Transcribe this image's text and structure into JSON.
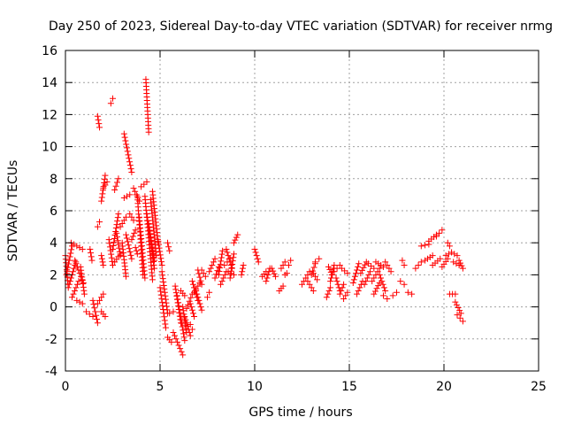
{
  "chart_data": {
    "type": "scatter",
    "title": "Day 250 of 2023, Sidereal Day-to-day VTEC variation (SDTVAR) for receiver nrmg",
    "xlabel": "GPS time / hours",
    "ylabel": "SDTVAR / TECUs",
    "xlim": [
      0,
      25
    ],
    "ylim": [
      -4,
      16
    ],
    "xticks": [
      0,
      5,
      10,
      15,
      20,
      25
    ],
    "yticks": [
      -4,
      -2,
      0,
      2,
      4,
      6,
      8,
      10,
      12,
      14,
      16
    ],
    "grid": true,
    "marker": "+",
    "color": "#ff0000",
    "segments": [
      [
        0.0,
        3.2,
        0.15,
        1.2
      ],
      [
        0.05,
        2.0,
        0.35,
        3.8
      ],
      [
        0.2,
        1.4,
        0.55,
        2.8
      ],
      [
        0.3,
        4.0,
        0.9,
        3.6
      ],
      [
        0.35,
        0.6,
        0.7,
        1.6
      ],
      [
        0.5,
        2.9,
        0.95,
        1.5
      ],
      [
        0.6,
        0.4,
        0.9,
        0.2
      ],
      [
        0.8,
        2.5,
        1.0,
        0.8
      ],
      [
        1.1,
        -0.3,
        1.45,
        -0.6
      ],
      [
        1.3,
        3.6,
        1.4,
        2.9
      ],
      [
        1.45,
        0.4,
        1.7,
        -1.0
      ],
      [
        1.7,
        0.2,
        2.0,
        0.8
      ],
      [
        1.7,
        11.9,
        1.8,
        11.2
      ],
      [
        1.7,
        5.0,
        1.8,
        5.3
      ],
      [
        1.9,
        6.6,
        2.1,
        8.2
      ],
      [
        1.9,
        -0.3,
        2.1,
        -0.6
      ],
      [
        1.9,
        3.2,
        2.0,
        2.6
      ],
      [
        2.0,
        7.4,
        2.2,
        7.8
      ],
      [
        2.3,
        4.2,
        2.5,
        2.6
      ],
      [
        2.4,
        12.7,
        2.5,
        13.0
      ],
      [
        2.5,
        3.6,
        2.8,
        5.8
      ],
      [
        2.6,
        2.8,
        2.9,
        3.3
      ],
      [
        2.6,
        7.3,
        2.8,
        8.0
      ],
      [
        2.7,
        4.6,
        2.9,
        3.2
      ],
      [
        2.9,
        5.0,
        3.2,
        5.6
      ],
      [
        3.0,
        4.0,
        3.2,
        1.9
      ],
      [
        3.1,
        10.8,
        3.5,
        8.4
      ],
      [
        3.1,
        6.8,
        3.4,
        7.0
      ],
      [
        3.2,
        4.5,
        3.5,
        3.0
      ],
      [
        3.4,
        5.8,
        3.6,
        5.4
      ],
      [
        3.5,
        4.2,
        3.7,
        4.8
      ],
      [
        3.6,
        7.4,
        3.9,
        6.6
      ],
      [
        3.7,
        3.7,
        3.8,
        3.3
      ],
      [
        3.8,
        6.9,
        4.1,
        2.0
      ],
      [
        3.9,
        5.6,
        4.2,
        1.8
      ],
      [
        4.0,
        7.5,
        4.3,
        7.8
      ],
      [
        4.2,
        6.9,
        4.6,
        1.7
      ],
      [
        4.25,
        14.2,
        4.4,
        10.9
      ],
      [
        4.3,
        5.8,
        4.7,
        2.4
      ],
      [
        4.4,
        5.2,
        4.7,
        2.9
      ],
      [
        4.5,
        6.7,
        4.8,
        3.2
      ],
      [
        4.6,
        7.2,
        4.9,
        4.0
      ],
      [
        4.9,
        4.1,
        5.1,
        2.6
      ],
      [
        5.0,
        1.2,
        5.3,
        -1.3
      ],
      [
        5.1,
        2.2,
        5.4,
        -0.4
      ],
      [
        5.4,
        4.0,
        5.5,
        3.5
      ],
      [
        5.4,
        -1.9,
        5.6,
        -2.2
      ],
      [
        5.5,
        -0.4,
        5.7,
        -0.3
      ],
      [
        5.7,
        -1.6,
        6.2,
        -3.0
      ],
      [
        5.8,
        1.3,
        6.1,
        -1.0
      ],
      [
        5.9,
        0.7,
        6.3,
        -2.1
      ],
      [
        6.1,
        1.0,
        6.3,
        0.7
      ],
      [
        6.2,
        0.0,
        6.4,
        -1.6
      ],
      [
        6.3,
        -0.6,
        6.6,
        -1.8
      ],
      [
        6.4,
        -0.1,
        6.7,
        0.8
      ],
      [
        6.6,
        0.2,
        6.8,
        -0.6
      ],
      [
        6.6,
        -1.1,
        6.7,
        -1.4
      ],
      [
        6.7,
        1.6,
        7.0,
        0.4
      ],
      [
        6.8,
        0.9,
        7.1,
        1.5
      ],
      [
        6.9,
        1.0,
        7.2,
        -0.2
      ],
      [
        7.0,
        2.3,
        7.2,
        1.4
      ],
      [
        7.2,
        2.3,
        7.4,
        1.9
      ],
      [
        7.5,
        0.6,
        7.6,
        0.9
      ],
      [
        7.6,
        2.2,
        7.9,
        3.0
      ],
      [
        7.9,
        1.8,
        8.1,
        2.5
      ],
      [
        8.1,
        2.0,
        8.3,
        3.5
      ],
      [
        8.2,
        1.4,
        8.5,
        2.2
      ],
      [
        8.4,
        2.6,
        8.7,
        3.0
      ],
      [
        8.5,
        3.6,
        8.8,
        2.4
      ],
      [
        8.7,
        1.8,
        8.9,
        3.3
      ],
      [
        8.9,
        4.0,
        9.1,
        4.5
      ],
      [
        8.6,
        2.2,
        8.9,
        2.0
      ],
      [
        9.3,
        2.0,
        9.4,
        2.6
      ],
      [
        10.0,
        3.6,
        10.2,
        2.8
      ],
      [
        10.4,
        1.9,
        10.6,
        2.2
      ],
      [
        10.6,
        1.6,
        10.8,
        2.4
      ],
      [
        10.9,
        2.4,
        11.1,
        1.9
      ],
      [
        11.3,
        1.0,
        11.5,
        1.3
      ],
      [
        11.4,
        2.4,
        11.6,
        2.8
      ],
      [
        11.6,
        2.0,
        11.7,
        2.1
      ],
      [
        11.8,
        2.6,
        11.9,
        2.9
      ],
      [
        12.5,
        1.4,
        12.9,
        2.2
      ],
      [
        12.8,
        1.6,
        13.1,
        1.0
      ],
      [
        13.0,
        2.0,
        13.2,
        2.7
      ],
      [
        13.1,
        2.1,
        13.3,
        1.7
      ],
      [
        13.2,
        2.8,
        13.4,
        3.0
      ],
      [
        13.8,
        0.6,
        14.0,
        1.2
      ],
      [
        13.9,
        2.5,
        14.1,
        2.0
      ],
      [
        14.0,
        1.6,
        14.2,
        2.6
      ],
      [
        14.2,
        2.2,
        14.5,
        2.6
      ],
      [
        14.3,
        1.8,
        14.5,
        1.0
      ],
      [
        14.5,
        0.8,
        14.7,
        1.4
      ],
      [
        14.6,
        2.4,
        14.9,
        2.1
      ],
      [
        14.7,
        0.5,
        14.9,
        0.9
      ],
      [
        15.2,
        1.5,
        15.5,
        2.7
      ],
      [
        15.4,
        0.8,
        15.7,
        1.6
      ],
      [
        15.6,
        2.1,
        15.9,
        2.8
      ],
      [
        15.8,
        1.4,
        16.1,
        2.2
      ],
      [
        16.0,
        2.7,
        16.3,
        2.4
      ],
      [
        16.2,
        1.6,
        16.6,
        2.4
      ],
      [
        16.3,
        0.8,
        16.6,
        1.5
      ],
      [
        16.4,
        2.8,
        16.8,
        2.5
      ],
      [
        16.6,
        2.0,
        16.9,
        1.0
      ],
      [
        16.8,
        0.7,
        17.0,
        0.5
      ],
      [
        16.9,
        2.8,
        17.2,
        2.2
      ],
      [
        17.3,
        0.7,
        17.5,
        0.9
      ],
      [
        17.7,
        1.6,
        17.9,
        1.4
      ],
      [
        17.8,
        2.9,
        17.9,
        2.6
      ],
      [
        18.1,
        0.9,
        18.3,
        0.8
      ],
      [
        18.5,
        2.4,
        18.8,
        2.8
      ],
      [
        18.8,
        3.8,
        19.2,
        3.9
      ],
      [
        19.0,
        2.9,
        19.4,
        3.2
      ],
      [
        19.2,
        4.1,
        19.6,
        4.5
      ],
      [
        19.4,
        2.6,
        19.8,
        3.0
      ],
      [
        19.6,
        4.4,
        19.9,
        4.8
      ],
      [
        19.9,
        2.5,
        20.2,
        3.0
      ],
      [
        20.1,
        3.2,
        20.4,
        3.4
      ],
      [
        20.2,
        4.0,
        20.3,
        3.8
      ],
      [
        20.3,
        0.8,
        20.6,
        0.8
      ],
      [
        20.4,
        3.4,
        20.7,
        3.2
      ],
      [
        20.5,
        2.8,
        20.8,
        2.6
      ],
      [
        20.6,
        0.3,
        20.9,
        -0.4
      ],
      [
        20.7,
        -0.5,
        21.0,
        -0.9
      ],
      [
        20.8,
        2.9,
        21.0,
        2.4
      ]
    ]
  }
}
